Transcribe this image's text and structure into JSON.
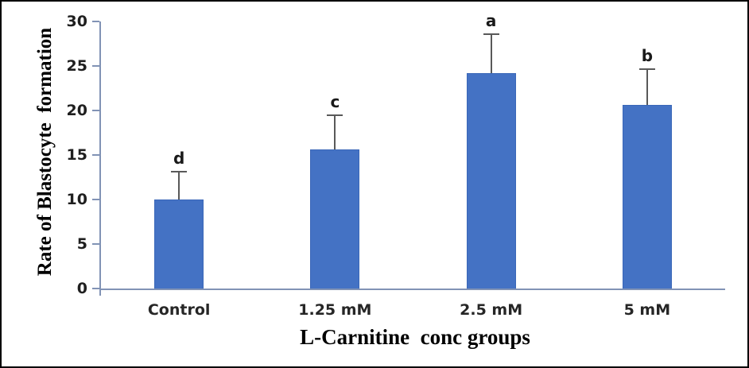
{
  "figure": {
    "background_color": "#ffffff",
    "border_color": "#000000"
  },
  "chart_data": {
    "type": "bar",
    "title": "",
    "xlabel": "L-Carnitine  conc groups",
    "ylabel": "Rate of Blastocyte  formation",
    "categories": [
      "Control",
      "1.25 mM",
      "2.5 mM",
      "5 mM"
    ],
    "values": [
      10.0,
      15.6,
      24.2,
      20.6
    ],
    "error_up": [
      3.1,
      3.9,
      4.4,
      4.0
    ],
    "sig_letters": [
      "d",
      "c",
      "a",
      "b"
    ],
    "ylim": [
      0,
      30
    ],
    "yticks": [
      0,
      5,
      10,
      15,
      20,
      25,
      30
    ],
    "grid": false,
    "legend": "none",
    "bar_color": "#4472c4",
    "bar_border_color": "#3a67b8",
    "axis_color": "#8193b5",
    "error_bar_color": "#595959",
    "tick_label_color": "#1f1f1f",
    "category_label_color": "#262626",
    "letter_color": "#1a1a1a"
  }
}
